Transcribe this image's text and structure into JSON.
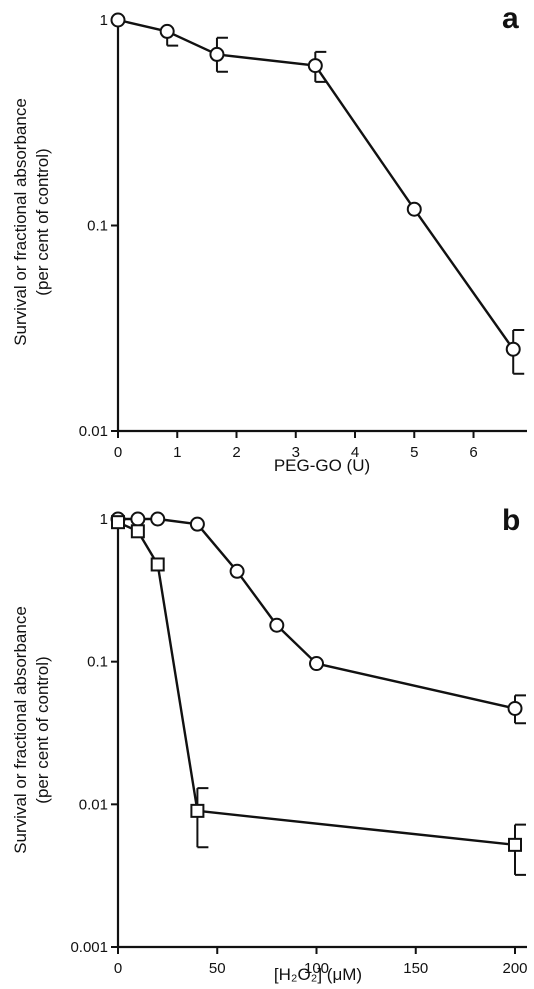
{
  "chart_data": [
    {
      "type": "line",
      "panel_label": "a",
      "xlabel": "PEG-GO (U)",
      "ylabel": [
        "Survival or fractional absorbance",
        "(per cent of control)"
      ],
      "yscale": "log",
      "xlim": [
        0,
        6.7
      ],
      "ylim": [
        0.01,
        1
      ],
      "xticks": [
        0,
        1,
        2,
        3,
        4,
        5,
        6
      ],
      "xtick_labels": [
        "0",
        "1",
        "2",
        "3",
        "4",
        "5",
        "6"
      ],
      "yticks": [
        0.01,
        0.1,
        1
      ],
      "ytick_labels": [
        "0.01",
        "0.1",
        "1"
      ],
      "series": [
        {
          "marker": "circle",
          "x": [
            0,
            0.83,
            1.67,
            3.33,
            5.0,
            6.67
          ],
          "values": [
            1.0,
            0.88,
            0.68,
            0.6,
            0.12,
            0.025
          ],
          "error_high": [
            null,
            null,
            0.82,
            0.7,
            null,
            0.031
          ],
          "error_low": [
            null,
            0.75,
            0.56,
            0.5,
            null,
            0.019
          ]
        }
      ]
    },
    {
      "type": "line",
      "panel_label": "b",
      "xlabel": "[H₂O₂] (μM)",
      "ylabel": [
        "Survival or fractional absorbance",
        "(per cent of control)"
      ],
      "yscale": "log",
      "xlim": [
        0,
        200
      ],
      "ylim": [
        0.001,
        1
      ],
      "xticks": [
        0,
        50,
        100,
        150,
        200
      ],
      "xtick_labels": [
        "0",
        "50",
        "100",
        "150",
        "200"
      ],
      "yticks": [
        0.001,
        0.01,
        0.1,
        1
      ],
      "ytick_labels": [
        "0.001",
        "0.01",
        "0.1",
        "1"
      ],
      "series": [
        {
          "marker": "circle",
          "x": [
            0,
            10,
            20,
            40,
            60,
            80,
            100,
            200
          ],
          "values": [
            1.0,
            1.0,
            1.0,
            0.92,
            0.43,
            0.18,
            0.097,
            0.047
          ],
          "error_high": [
            null,
            null,
            null,
            null,
            null,
            null,
            null,
            0.058
          ],
          "error_low": [
            null,
            null,
            null,
            null,
            null,
            null,
            null,
            0.037
          ]
        },
        {
          "marker": "square",
          "x": [
            0,
            10,
            20,
            40,
            200
          ],
          "values": [
            0.95,
            0.82,
            0.48,
            0.009,
            0.0052
          ],
          "error_high": [
            null,
            null,
            null,
            0.013,
            0.0072
          ],
          "error_low": [
            null,
            null,
            null,
            0.005,
            0.0032
          ]
        }
      ]
    }
  ]
}
